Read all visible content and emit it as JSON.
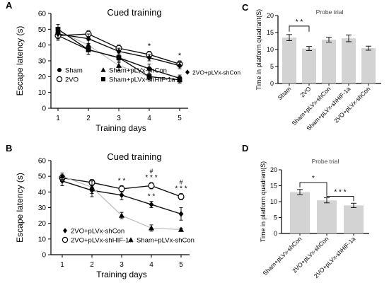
{
  "chart_data": [
    {
      "panel": "A",
      "type": "line",
      "title": "Cued training",
      "xlabel": "Training days",
      "ylabel": "Escape latency (s)",
      "x": [
        1,
        2,
        3,
        4,
        5
      ],
      "ylim": [
        0,
        60
      ],
      "yticks": [
        0,
        10,
        20,
        30,
        40,
        50,
        60
      ],
      "series": [
        {
          "name": "Sham",
          "marker": "filled-circle",
          "values": [
            46,
            37,
            32,
            25,
            19
          ],
          "err": [
            2,
            3,
            3,
            3,
            2
          ]
        },
        {
          "name": "2VO",
          "marker": "open-circle",
          "values": [
            46,
            47,
            38,
            34,
            28
          ],
          "err": [
            3,
            2,
            2,
            2,
            2
          ]
        },
        {
          "name": "Sham+pLVx-shCon",
          "marker": "filled-triangle",
          "values": [
            49,
            40,
            27,
            20,
            18
          ],
          "err": [
            2,
            3,
            3,
            2,
            2
          ]
        },
        {
          "name": "Sham+pLVx-shHIF-1a",
          "marker": "filled-square",
          "values": [
            50,
            37,
            32,
            20,
            18
          ],
          "err": [
            3,
            3,
            2,
            2,
            2
          ]
        },
        {
          "name": "2VO+pLVx-shCon",
          "marker": "filled-diamond",
          "values": [
            47,
            44,
            36,
            32,
            27
          ],
          "err": [
            3,
            3,
            2,
            2,
            2
          ]
        }
      ],
      "annotations": [
        {
          "x": 4,
          "text": "*"
        },
        {
          "x": 5,
          "text": "*"
        }
      ]
    },
    {
      "panel": "B",
      "type": "line",
      "title": "Cued training",
      "xlabel": "Training days",
      "ylabel": "Escape latency (s)",
      "x": [
        1,
        2,
        3,
        4,
        5
      ],
      "ylim": [
        0,
        60
      ],
      "yticks": [
        0,
        10,
        20,
        30,
        40,
        50,
        60
      ],
      "series": [
        {
          "name": "2VO+pLVx-shCon",
          "marker": "filled-diamond",
          "values": [
            47,
            41,
            38,
            32,
            26
          ],
          "err": [
            3,
            4,
            3,
            2,
            4
          ]
        },
        {
          "name": "2VO+pLVx-shHIF-1a",
          "marker": "open-circle",
          "values": [
            49,
            46,
            42,
            44,
            37
          ],
          "err": [
            2,
            2,
            2,
            2,
            2
          ]
        },
        {
          "name": "Sham+pLVx-shCon",
          "marker": "filled-triangle",
          "values": [
            50,
            43,
            25,
            17,
            16
          ],
          "err": [
            2,
            4,
            2,
            2,
            1
          ]
        }
      ],
      "annotations": [
        {
          "x": 3,
          "text": "* *",
          "level": 1
        },
        {
          "x": 4,
          "text": "#",
          "level": 2
        },
        {
          "x": 4,
          "text": "* * *",
          "level": 1
        },
        {
          "x": 4,
          "text": "* *",
          "level": 0
        },
        {
          "x": 5,
          "text": "#",
          "level": 2
        },
        {
          "x": 5,
          "text": "* * *",
          "level": 1
        }
      ]
    },
    {
      "panel": "C",
      "type": "bar",
      "title": "Probe trial",
      "ylabel": "Time in platform quadrant(S)",
      "categories": [
        "Sham",
        "2VO",
        "Sham+pLVx-shCon",
        "Sham+pLVx-shHIF-1a",
        "2VO+pLVx-shCon"
      ],
      "values": [
        13.5,
        10.3,
        12.9,
        13.3,
        10.4
      ],
      "err": [
        0.9,
        0.6,
        0.7,
        1.0,
        0.6
      ],
      "ylim": [
        0,
        20
      ],
      "yticks": [
        0,
        5,
        10,
        15,
        20
      ],
      "annotations": [
        {
          "between": [
            0,
            1
          ],
          "text": "* *"
        }
      ]
    },
    {
      "panel": "D",
      "type": "bar",
      "title": "Probe trial",
      "ylabel": "Time in platform quadrant(S)",
      "categories": [
        "Sham+pLVx-shCon",
        "2VO+pLVx-shCon",
        "2VO+pLVx-shHIF-1a"
      ],
      "values": [
        13.0,
        10.4,
        8.8
      ],
      "err": [
        0.8,
        0.8,
        0.7
      ],
      "ylim": [
        0,
        20
      ],
      "yticks": [
        0,
        5,
        10,
        15,
        20
      ],
      "annotations": [
        {
          "between": [
            0,
            1
          ],
          "text": "*"
        },
        {
          "between": [
            1,
            2
          ],
          "text": "* * *"
        }
      ]
    }
  ],
  "panel_letters": [
    "A",
    "B",
    "C",
    "D"
  ],
  "colors": {
    "line_dark": "#111111",
    "line_light": "#bdbdbd",
    "bar_fill": "#d3d3d3",
    "axis": "#000000"
  }
}
